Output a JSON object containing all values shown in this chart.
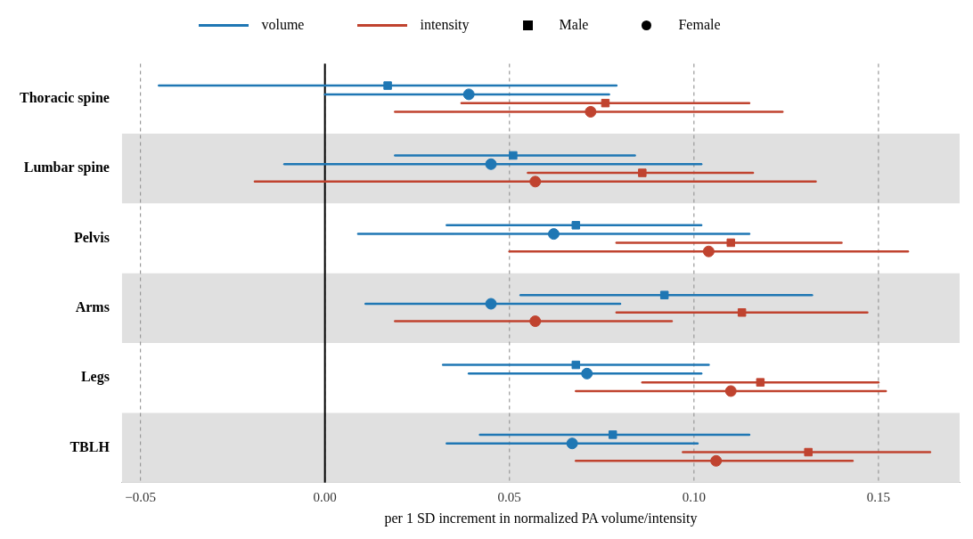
{
  "chart_data": {
    "type": "scatter",
    "orientation": "horizontal",
    "xlabel": "per 1 SD increment in normalized PA volume/intensity",
    "categories": [
      "Thoracic spine",
      "Lumbar spine",
      "Pelvis",
      "Arms",
      "Legs",
      "TBLH"
    ],
    "xlim": [
      -0.055,
      0.172
    ],
    "xticks": [
      {
        "value": -0.05,
        "label": "−0.05"
      },
      {
        "value": 0,
        "label": "0.00"
      },
      {
        "value": 0.05,
        "label": "0.05"
      },
      {
        "value": 0.1,
        "label": "0.10"
      },
      {
        "value": 0.15,
        "label": "0.15"
      }
    ],
    "grid": "x",
    "legend": "top",
    "ref_lines": [
      {
        "axis": "x",
        "value": 0,
        "color": "#000000"
      }
    ],
    "annotations": [
      "Male",
      "Female"
    ],
    "series": [
      {
        "name": "volume",
        "color": "#1f77b4",
        "marker": "square",
        "values": [
          0.017,
          0.051,
          0.068,
          0.092,
          0.068,
          0.078
        ],
        "errors": [
          [
            -0.045,
            0.079
          ],
          [
            0.019,
            0.084
          ],
          [
            0.033,
            0.102
          ],
          [
            0.053,
            0.132
          ],
          [
            0.032,
            0.104
          ],
          [
            0.042,
            0.115
          ]
        ]
      },
      {
        "color": "#1f77b4",
        "marker": "circle",
        "values": [
          0.039,
          0.045,
          0.062,
          0.045,
          0.071,
          0.067
        ],
        "errors": [
          [
            0.0,
            0.077
          ],
          [
            -0.011,
            0.102
          ],
          [
            0.009,
            0.115
          ],
          [
            0.011,
            0.08
          ],
          [
            0.039,
            0.102
          ],
          [
            0.033,
            0.101
          ]
        ]
      },
      {
        "name": "intensity",
        "color": "#c0432f",
        "marker": "square",
        "values": [
          0.076,
          0.086,
          0.11,
          0.113,
          0.118,
          0.131
        ],
        "errors": [
          [
            0.037,
            0.115
          ],
          [
            0.055,
            0.116
          ],
          [
            0.079,
            0.14
          ],
          [
            0.079,
            0.147
          ],
          [
            0.086,
            0.15
          ],
          [
            0.097,
            0.164
          ]
        ]
      },
      {
        "color": "#c0432f",
        "marker": "circle",
        "values": [
          0.072,
          0.057,
          0.104,
          0.057,
          0.11,
          0.106
        ],
        "errors": [
          [
            0.019,
            0.124
          ],
          [
            -0.019,
            0.133
          ],
          [
            0.05,
            0.158
          ],
          [
            0.019,
            0.094
          ],
          [
            0.068,
            0.152
          ],
          [
            0.068,
            0.143
          ]
        ]
      }
    ]
  }
}
